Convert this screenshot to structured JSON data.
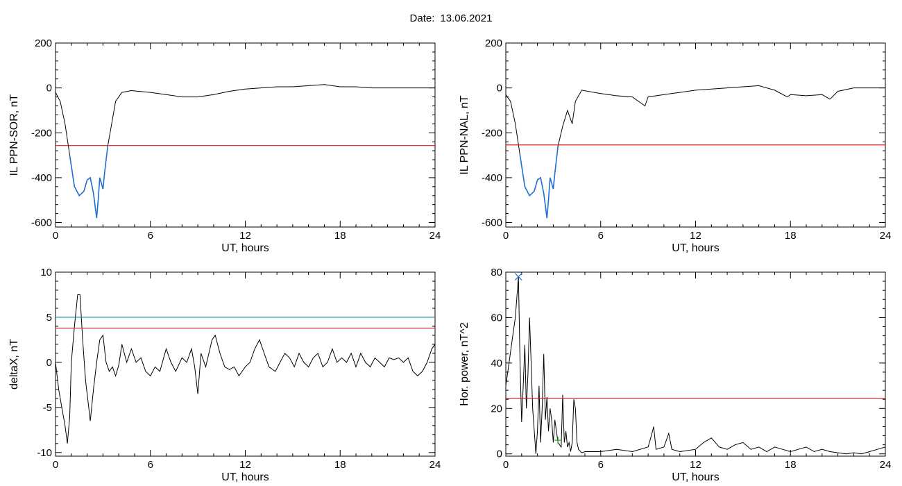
{
  "header": {
    "date_label": "Date:",
    "date_value": "13.06.2021"
  },
  "chart_data": [
    {
      "type": "line",
      "title": "",
      "xlabel": "UT, hours",
      "ylabel": "IL PPN-SOR, nT",
      "xlim": [
        0,
        24
      ],
      "ylim": [
        -620,
        200
      ],
      "xticks": [
        0,
        6,
        12,
        18,
        24
      ],
      "yticks": [
        200,
        0,
        -200,
        -400,
        -600
      ],
      "threshold": [
        {
          "value": -257,
          "color": "#e31a1c"
        }
      ],
      "highlight": {
        "color": "#1f6fd6",
        "below": -257
      },
      "series": [
        {
          "color": "#000000",
          "points": [
            [
              0,
              -20
            ],
            [
              0.3,
              -60
            ],
            [
              0.6,
              -160
            ],
            [
              0.9,
              -300
            ],
            [
              1.2,
              -440
            ],
            [
              1.5,
              -480
            ],
            [
              1.8,
              -460
            ],
            [
              2.0,
              -410
            ],
            [
              2.2,
              -400
            ],
            [
              2.4,
              -470
            ],
            [
              2.6,
              -580
            ],
            [
              2.7,
              -500
            ],
            [
              2.8,
              -400
            ],
            [
              3.0,
              -450
            ],
            [
              3.1,
              -380
            ],
            [
              3.3,
              -260
            ],
            [
              3.5,
              -180
            ],
            [
              3.8,
              -60
            ],
            [
              4.2,
              -20
            ],
            [
              4.8,
              -12
            ],
            [
              6,
              -20
            ],
            [
              7,
              -30
            ],
            [
              8,
              -40
            ],
            [
              9,
              -40
            ],
            [
              10,
              -30
            ],
            [
              11,
              -15
            ],
            [
              12,
              -5
            ],
            [
              13,
              0
            ],
            [
              14,
              5
            ],
            [
              15,
              5
            ],
            [
              16,
              10
            ],
            [
              17,
              15
            ],
            [
              18,
              5
            ],
            [
              19,
              5
            ],
            [
              20,
              0
            ],
            [
              21,
              0
            ],
            [
              22,
              0
            ],
            [
              23,
              0
            ],
            [
              24,
              0
            ]
          ]
        }
      ]
    },
    {
      "type": "line",
      "title": "",
      "xlabel": "UT, hours",
      "ylabel": "IL PPN-NAL, nT",
      "xlim": [
        0,
        24
      ],
      "ylim": [
        -620,
        200
      ],
      "xticks": [
        0,
        6,
        12,
        18,
        24
      ],
      "yticks": [
        200,
        0,
        -200,
        -400,
        -600
      ],
      "threshold": [
        {
          "value": -254,
          "color": "#e31a1c"
        }
      ],
      "highlight": {
        "color": "#1f6fd6",
        "below": -254
      },
      "series": [
        {
          "color": "#000000",
          "points": [
            [
              0,
              -30
            ],
            [
              0.3,
              -60
            ],
            [
              0.6,
              -160
            ],
            [
              0.9,
              -300
            ],
            [
              1.2,
              -440
            ],
            [
              1.5,
              -480
            ],
            [
              1.8,
              -460
            ],
            [
              2.0,
              -410
            ],
            [
              2.2,
              -400
            ],
            [
              2.4,
              -470
            ],
            [
              2.6,
              -580
            ],
            [
              2.7,
              -500
            ],
            [
              2.8,
              -400
            ],
            [
              3.0,
              -450
            ],
            [
              3.1,
              -380
            ],
            [
              3.3,
              -260
            ],
            [
              3.6,
              -170
            ],
            [
              3.9,
              -100
            ],
            [
              4.2,
              -160
            ],
            [
              4.4,
              -60
            ],
            [
              4.8,
              -10
            ],
            [
              6,
              -25
            ],
            [
              7,
              -35
            ],
            [
              8,
              -40
            ],
            [
              8.8,
              -80
            ],
            [
              9,
              -40
            ],
            [
              10,
              -30
            ],
            [
              11,
              -20
            ],
            [
              12,
              -10
            ],
            [
              13,
              -5
            ],
            [
              14,
              0
            ],
            [
              15,
              5
            ],
            [
              16,
              10
            ],
            [
              17,
              -10
            ],
            [
              17.8,
              -40
            ],
            [
              18,
              -30
            ],
            [
              19,
              -35
            ],
            [
              20,
              -30
            ],
            [
              20.5,
              -50
            ],
            [
              21,
              -15
            ],
            [
              22,
              0
            ],
            [
              23,
              0
            ],
            [
              24,
              0
            ]
          ]
        }
      ]
    },
    {
      "type": "line",
      "title": "",
      "xlabel": "UT, hours",
      "ylabel": "deltaX, nT",
      "xlim": [
        0,
        24
      ],
      "ylim": [
        -10.4,
        10
      ],
      "xticks": [
        0,
        6,
        12,
        18,
        24
      ],
      "yticks": [
        10,
        5,
        0,
        -5,
        -10
      ],
      "threshold": [
        {
          "value": 5,
          "color": "#1a8c8c"
        },
        {
          "value": 3.8,
          "color": "#e31a1c"
        }
      ],
      "series": [
        {
          "color": "#000000",
          "points": [
            [
              0,
              0
            ],
            [
              0.2,
              -3
            ],
            [
              0.4,
              -5
            ],
            [
              0.6,
              -7
            ],
            [
              0.75,
              -9
            ],
            [
              0.9,
              -6
            ],
            [
              1.0,
              0
            ],
            [
              1.2,
              4
            ],
            [
              1.4,
              7.5
            ],
            [
              1.55,
              7.5
            ],
            [
              1.7,
              3
            ],
            [
              1.9,
              -2
            ],
            [
              2.1,
              -5
            ],
            [
              2.2,
              -6.5
            ],
            [
              2.4,
              -3
            ],
            [
              2.6,
              0
            ],
            [
              2.8,
              2.5
            ],
            [
              3.0,
              3
            ],
            [
              3.2,
              0
            ],
            [
              3.4,
              -1
            ],
            [
              3.6,
              -0.5
            ],
            [
              3.8,
              -1.5
            ],
            [
              4.0,
              -0.3
            ],
            [
              4.2,
              2
            ],
            [
              4.5,
              0
            ],
            [
              4.8,
              1.5
            ],
            [
              5.1,
              0
            ],
            [
              5.4,
              0.5
            ],
            [
              5.7,
              -1
            ],
            [
              6.0,
              -1.5
            ],
            [
              6.3,
              -0.5
            ],
            [
              6.6,
              -1
            ],
            [
              7.0,
              1.5
            ],
            [
              7.3,
              0
            ],
            [
              7.6,
              -1
            ],
            [
              8.0,
              0.5
            ],
            [
              8.3,
              0
            ],
            [
              8.6,
              1.5
            ],
            [
              8.8,
              -0.5
            ],
            [
              9.0,
              -3.5
            ],
            [
              9.2,
              1
            ],
            [
              9.5,
              -0.5
            ],
            [
              9.9,
              2.5
            ],
            [
              10.1,
              3
            ],
            [
              10.4,
              1
            ],
            [
              10.7,
              -0.5
            ],
            [
              11.0,
              -0.8
            ],
            [
              11.3,
              -0.5
            ],
            [
              11.6,
              -1.5
            ],
            [
              12.0,
              -0.5
            ],
            [
              12.3,
              0
            ],
            [
              12.6,
              1.5
            ],
            [
              12.9,
              2.5
            ],
            [
              13.2,
              1
            ],
            [
              13.5,
              -0.5
            ],
            [
              13.9,
              -1
            ],
            [
              14.2,
              0
            ],
            [
              14.5,
              1
            ],
            [
              14.8,
              0.5
            ],
            [
              15.1,
              -0.5
            ],
            [
              15.4,
              1
            ],
            [
              15.7,
              0
            ],
            [
              16.0,
              -0.5
            ],
            [
              16.3,
              0.5
            ],
            [
              16.6,
              1
            ],
            [
              16.9,
              -0.5
            ],
            [
              17.2,
              0
            ],
            [
              17.5,
              1.5
            ],
            [
              17.8,
              0
            ],
            [
              18.1,
              0.5
            ],
            [
              18.4,
              0
            ],
            [
              18.7,
              1
            ],
            [
              19.0,
              -0.5
            ],
            [
              19.3,
              1
            ],
            [
              19.6,
              0
            ],
            [
              19.9,
              -0.5
            ],
            [
              20.2,
              0.5
            ],
            [
              20.5,
              0
            ],
            [
              20.8,
              -0.5
            ],
            [
              21.1,
              0.5
            ],
            [
              21.4,
              0.3
            ],
            [
              21.7,
              0.5
            ],
            [
              22.0,
              0
            ],
            [
              22.3,
              0.5
            ],
            [
              22.6,
              -1
            ],
            [
              22.9,
              -1.5
            ],
            [
              23.2,
              -1
            ],
            [
              23.5,
              0
            ],
            [
              23.8,
              1.5
            ],
            [
              24.0,
              2
            ]
          ]
        }
      ]
    },
    {
      "type": "line",
      "title": "",
      "xlabel": "UT, hours",
      "ylabel": "Hor. power, nT^2",
      "xlim": [
        0,
        24
      ],
      "ylim": [
        -1,
        80
      ],
      "xticks": [
        0,
        6,
        12,
        18,
        24
      ],
      "yticks": [
        80,
        60,
        40,
        20,
        0
      ],
      "threshold": [
        {
          "value": 24.5,
          "color": "#e31a1c"
        }
      ],
      "markers": [
        {
          "x": 0.8,
          "y": 78,
          "symbol": "x",
          "color": "#1f6fd6"
        },
        {
          "x": 3.3,
          "y": 6,
          "symbol": "+",
          "color": "#22aa22"
        }
      ],
      "series": [
        {
          "color": "#000000",
          "points": [
            [
              0,
              30
            ],
            [
              0.2,
              40
            ],
            [
              0.4,
              50
            ],
            [
              0.6,
              60
            ],
            [
              0.8,
              78
            ],
            [
              0.9,
              40
            ],
            [
              1.0,
              14
            ],
            [
              1.1,
              30
            ],
            [
              1.2,
              48
            ],
            [
              1.3,
              20
            ],
            [
              1.4,
              35
            ],
            [
              1.5,
              60
            ],
            [
              1.6,
              40
            ],
            [
              1.7,
              20
            ],
            [
              1.8,
              10
            ],
            [
              1.9,
              0
            ],
            [
              2.0,
              10
            ],
            [
              2.1,
              30
            ],
            [
              2.2,
              5
            ],
            [
              2.3,
              20
            ],
            [
              2.4,
              44
            ],
            [
              2.5,
              15
            ],
            [
              2.6,
              25
            ],
            [
              2.7,
              10
            ],
            [
              2.8,
              20
            ],
            [
              2.9,
              15
            ],
            [
              3.0,
              5
            ],
            [
              3.1,
              15
            ],
            [
              3.2,
              10
            ],
            [
              3.3,
              5
            ],
            [
              3.5,
              3
            ],
            [
              3.6,
              26
            ],
            [
              3.7,
              5
            ],
            [
              3.8,
              10
            ],
            [
              3.9,
              3
            ],
            [
              4.0,
              5
            ],
            [
              4.1,
              1
            ],
            [
              4.2,
              5
            ],
            [
              4.3,
              24
            ],
            [
              4.4,
              20
            ],
            [
              4.5,
              5
            ],
            [
              4.6,
              2
            ],
            [
              4.8,
              0.5
            ],
            [
              5,
              1
            ],
            [
              6,
              1
            ],
            [
              7,
              2
            ],
            [
              8,
              1
            ],
            [
              9,
              3
            ],
            [
              9.2,
              8
            ],
            [
              9.35,
              12
            ],
            [
              9.5,
              2
            ],
            [
              10,
              3
            ],
            [
              10.3,
              9
            ],
            [
              10.5,
              2
            ],
            [
              11,
              1
            ],
            [
              12,
              2
            ],
            [
              12.5,
              5
            ],
            [
              13,
              7
            ],
            [
              13.5,
              3
            ],
            [
              14,
              2
            ],
            [
              14.5,
              4
            ],
            [
              15,
              5
            ],
            [
              15.5,
              2
            ],
            [
              16,
              3
            ],
            [
              16.5,
              1
            ],
            [
              17,
              3
            ],
            [
              17.5,
              2
            ],
            [
              18,
              1
            ],
            [
              18.5,
              2
            ],
            [
              19,
              3
            ],
            [
              19.5,
              1
            ],
            [
              20,
              2
            ],
            [
              20.5,
              1
            ],
            [
              21,
              0.5
            ],
            [
              21.5,
              0
            ],
            [
              22,
              0.5
            ],
            [
              22.5,
              0
            ],
            [
              23,
              1
            ],
            [
              23.5,
              2
            ],
            [
              24,
              3
            ]
          ]
        }
      ]
    }
  ]
}
